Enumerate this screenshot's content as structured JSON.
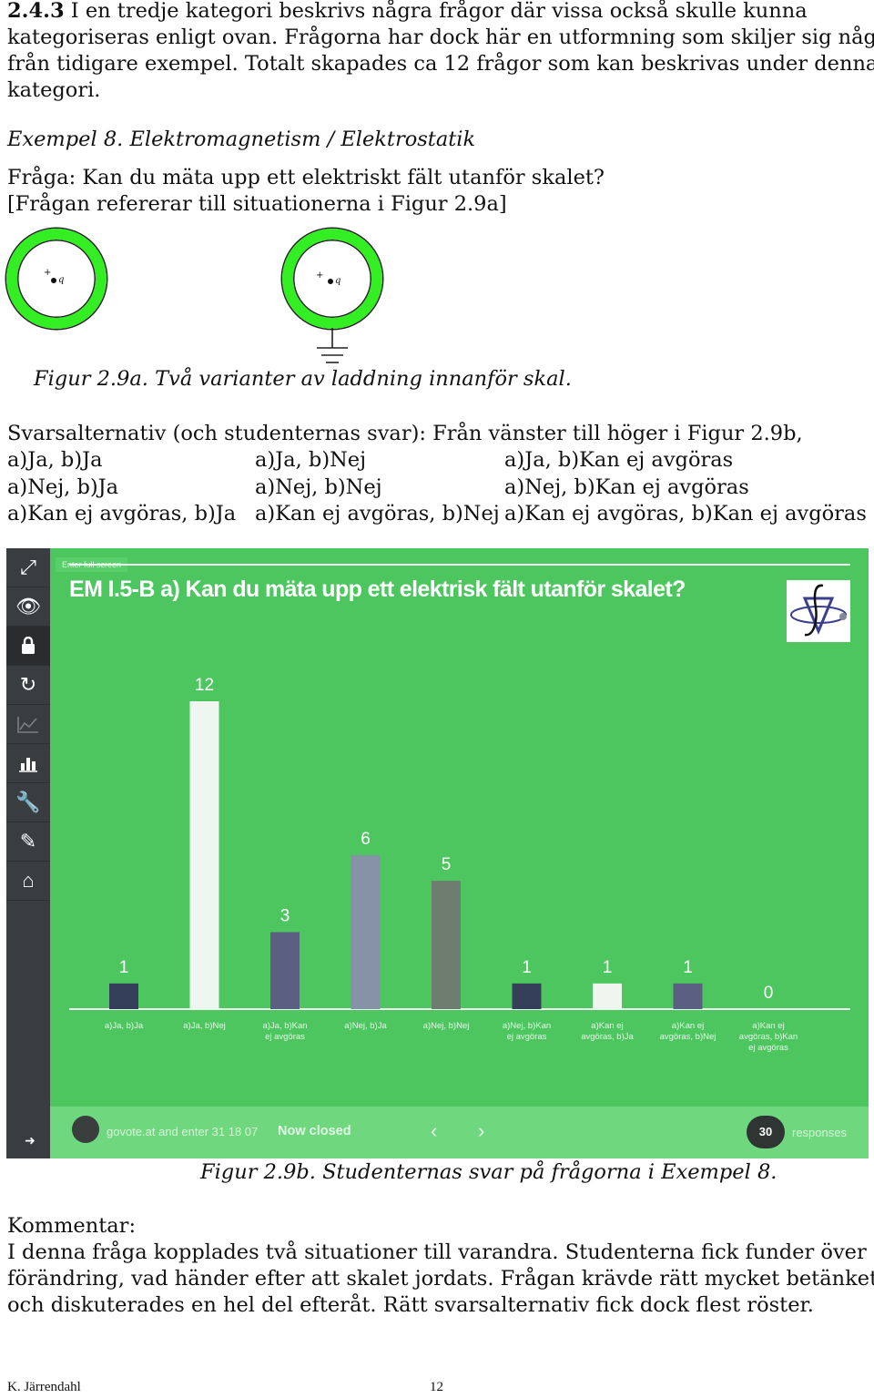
{
  "intro": {
    "heading_number": "2.4.3",
    "line1": " I en tredje kategori beskrivs några frågor där vissa också skulle kunna",
    "line2": "kategoriseras enligt ovan. Frågorna har dock här en utformning som skiljer sig något",
    "line3": "från tidigare exempel. Totalt skapades ca 12 frågor som kan beskrivas under denna",
    "line4": "kategori."
  },
  "example": {
    "title": "Exempel 8. Elektromagnetism / Elektrostatik",
    "question_line1": "Fråga: Kan du mäta upp ett elektriskt fält utanför skalet?",
    "question_line2": "[Frågan refererar till situationerna i Figur 2.9a]"
  },
  "figure_a": {
    "charge_sign": "+",
    "charge_label": "q",
    "caption": "Figur 2.9a. Två varianter av laddning innanför skal.",
    "shell_color": "#33ee22"
  },
  "answers": {
    "intro": "Svarsalternativ (och studenternas svar): Från vänster till höger i Figur 2.9b,",
    "rows": [
      [
        "a)Ja, b)Ja",
        "a)Ja, b)Nej",
        "a)Ja, b)Kan ej avgöras"
      ],
      [
        "a)Nej, b)Ja",
        "a)Nej, b)Nej",
        "a)Nej, b)Kan ej avgöras"
      ],
      [
        "a)Kan ej avgöras, b)Ja",
        "a)Kan ej avgöras, b)Nej",
        "a)Kan ej avgöras, b)Kan ej avgöras"
      ]
    ]
  },
  "poll": {
    "tooltip": "Enter full screen",
    "title": "EM I.5-B a) Kan du mäta upp ett elektrisk fält utanför skalet?",
    "background": "#4dc65f",
    "sidebar_icons": [
      "expand-icon",
      "eye-icon",
      "lock-icon",
      "refresh-icon",
      "line-chart-icon",
      "bar-chart-icon",
      "wrench-icon",
      "edit-icon",
      "home-icon"
    ],
    "footer": {
      "code_text": "govote.at and enter 31 18 07",
      "status": "Now closed",
      "prev": "‹",
      "next": "›",
      "responses_count": "30",
      "responses_label": "responses"
    }
  },
  "chart_data": {
    "type": "bar",
    "title": "EM I.5-B a) Kan du mäta upp ett elektrisk fält utanför skalet?",
    "categories": [
      [
        "a)Ja, b)Ja"
      ],
      [
        "a)Ja, b)Nej"
      ],
      [
        "a)Ja, b)Kan",
        "ej avgöras"
      ],
      [
        "a)Nej, b)Ja"
      ],
      [
        "a)Nej, b)Nej"
      ],
      [
        "a)Nej, b)Kan",
        "ej avgöras"
      ],
      [
        "a)Kan ej",
        "avgöras, b)Ja"
      ],
      [
        "a)Kan ej",
        "avgöras, b)Nej"
      ],
      [
        "a)Kan ej",
        "avgöras, b)Kan",
        "ej avgöras"
      ]
    ],
    "values": [
      1,
      12,
      3,
      6,
      5,
      1,
      1,
      1,
      0
    ],
    "colors": [
      "#363f59",
      "#eef6ef",
      "#5b5f82",
      "#8692a5",
      "#6e7d6f",
      "#363f59",
      "#eef6ef",
      "#5b5f82",
      "#8692a5"
    ],
    "ylim": [
      0,
      12
    ],
    "grid": false,
    "legend": "none"
  },
  "figure_b": {
    "caption": "Figur 2.9b. Studenternas svar på frågorna i Exempel 8."
  },
  "comment": {
    "heading": "Kommentar:",
    "line1": "I denna fråga kopplades två situationer till varandra. Studenterna fick funder över en",
    "line2": "förändring, vad händer efter att skalet jordats. Frågan krävde rätt mycket betänketid",
    "line3": "och diskuterades en hel del efteråt. Rätt svarsalternativ fick dock flest röster."
  },
  "footer": {
    "author": "K. Järrendahl",
    "page_number": "12"
  }
}
